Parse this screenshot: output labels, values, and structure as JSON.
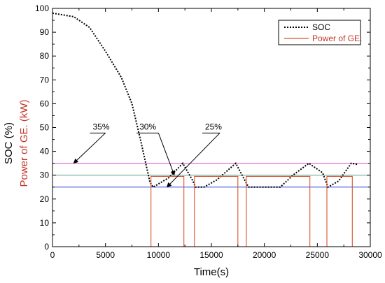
{
  "chart_data": {
    "type": "line",
    "xlabel": "Time(s)",
    "ylabel_soc": "SOC (%)",
    "ylabel_power": "Power of GE. (kW)",
    "xlim": [
      0,
      30000
    ],
    "ylim": [
      0,
      100
    ],
    "x_ticks": [
      0,
      5000,
      10000,
      15000,
      20000,
      25000,
      30000
    ],
    "y_ticks": [
      0,
      10,
      20,
      30,
      40,
      50,
      60,
      70,
      80,
      90,
      100
    ],
    "legend_position": "top-right",
    "series": [
      {
        "name": "SOC",
        "color": "#000000",
        "style": "dotted",
        "points": [
          [
            0,
            98
          ],
          [
            2000,
            96.5
          ],
          [
            3500,
            92
          ],
          [
            5000,
            82
          ],
          [
            6500,
            71
          ],
          [
            7500,
            60
          ],
          [
            8300,
            45
          ],
          [
            8800,
            35
          ],
          [
            9200,
            27
          ],
          [
            9500,
            25
          ],
          [
            11000,
            29
          ],
          [
            12300,
            35
          ],
          [
            13200,
            28
          ],
          [
            13500,
            25
          ],
          [
            14300,
            25
          ],
          [
            15500,
            28
          ],
          [
            17300,
            35
          ],
          [
            18200,
            27.5
          ],
          [
            18500,
            25
          ],
          [
            21500,
            25
          ],
          [
            22700,
            30
          ],
          [
            24200,
            35
          ],
          [
            25500,
            31
          ],
          [
            26000,
            25
          ],
          [
            27000,
            27.5
          ],
          [
            28200,
            35
          ],
          [
            28800,
            34.5
          ]
        ]
      },
      {
        "name": "Power of GE.",
        "color": "#d9532c",
        "style": "solid",
        "points": [
          [
            0,
            0
          ],
          [
            9300,
            0
          ],
          [
            9300,
            29.5
          ],
          [
            12400,
            29.5
          ],
          [
            12400,
            0
          ],
          [
            13400,
            0
          ],
          [
            13400,
            29.5
          ],
          [
            17500,
            29.5
          ],
          [
            17500,
            0
          ],
          [
            18300,
            0
          ],
          [
            18300,
            29.5
          ],
          [
            24300,
            29.5
          ],
          [
            24300,
            0
          ],
          [
            25900,
            0
          ],
          [
            25900,
            29.5
          ],
          [
            28300,
            29.5
          ],
          [
            28300,
            0
          ],
          [
            28900,
            0
          ]
        ]
      }
    ],
    "reference_lines": [
      {
        "label": "35%",
        "value": 35,
        "color": "#d54fd9",
        "text_x": 3800,
        "text_y": 48,
        "arrow_from_x": 5000,
        "arrow_to_x": 2000
      },
      {
        "label": "30%",
        "value": 30,
        "color": "#5aa28a",
        "text_x": 8200,
        "text_y": 48,
        "arrow_from_x": 10000,
        "arrow_to_x": 11500
      },
      {
        "label": "25%",
        "value": 25,
        "color": "#2c3fd6",
        "text_x": 14400,
        "text_y": 48,
        "arrow_from_x": 15800,
        "arrow_to_x": 10800
      }
    ]
  },
  "legend": {
    "soc_label": "SOC",
    "power_label": "Power of GE."
  }
}
